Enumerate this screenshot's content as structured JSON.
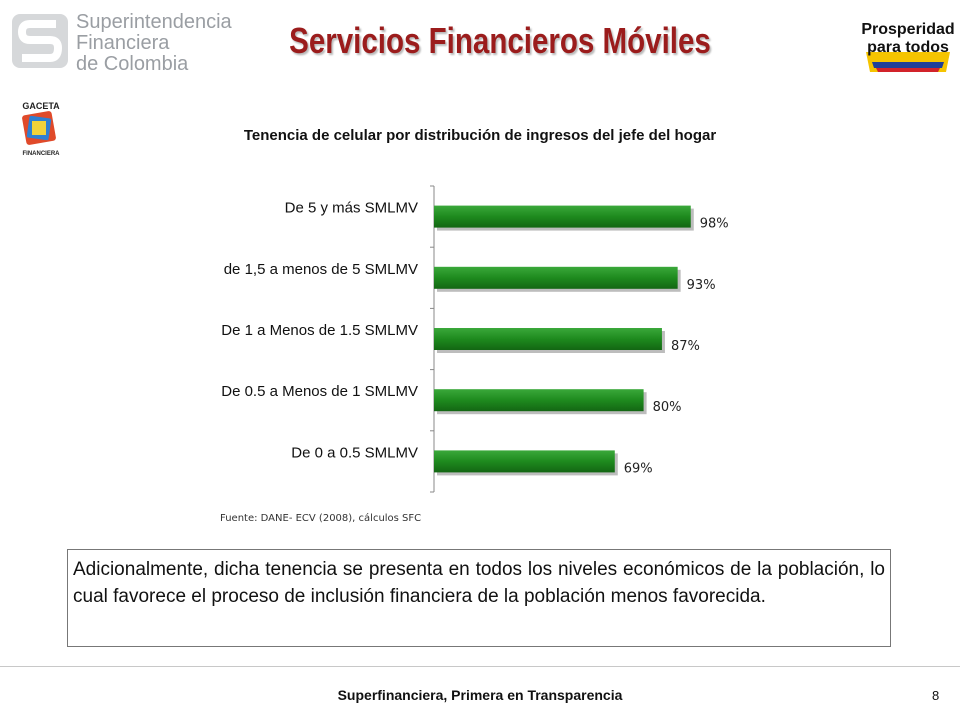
{
  "header": {
    "org_line1": "Superintendencia",
    "org_line2": "Financiera",
    "org_line3": "de Colombia",
    "title": "Servicios Financieros Móviles",
    "badge_line1": "Prosperidad",
    "badge_line2": "para todos",
    "gaceta_top": "GACETA",
    "gaceta_bottom": "FINANCIERA"
  },
  "chart_data": {
    "type": "bar",
    "orientation": "horizontal",
    "title": "Tenencia de celular por distribución de ingresos del jefe del hogar",
    "categories": [
      "De  5 y más SMLMV",
      "de 1,5 a menos de 5 SMLMV",
      "De 1 a Menos de 1.5 SMLMV",
      "De 0.5 a Menos de 1 SMLMV",
      "De 0 a 0.5 SMLMV"
    ],
    "values": [
      98,
      93,
      87,
      80,
      69
    ],
    "value_labels": [
      "98%",
      "93%",
      "87%",
      "80%",
      "69%"
    ],
    "xlim": [
      0,
      100
    ],
    "grid": false,
    "bar_color": "#1e8a1e"
  },
  "source": "Fuente: DANE- ECV (2008), cálculos SFC",
  "body_text": "Adicionalmente, dicha tenencia se presenta en todos los niveles económicos de la población, lo cual favorece el proceso de inclusión financiera de la población menos favorecida.",
  "footer": {
    "text": "Superfinanciera, Primera en Transparencia",
    "page": "8"
  },
  "colors": {
    "title": "#9b1c1c",
    "bar": "#1e8a1e",
    "logo_gray": "#9a9ea3"
  }
}
